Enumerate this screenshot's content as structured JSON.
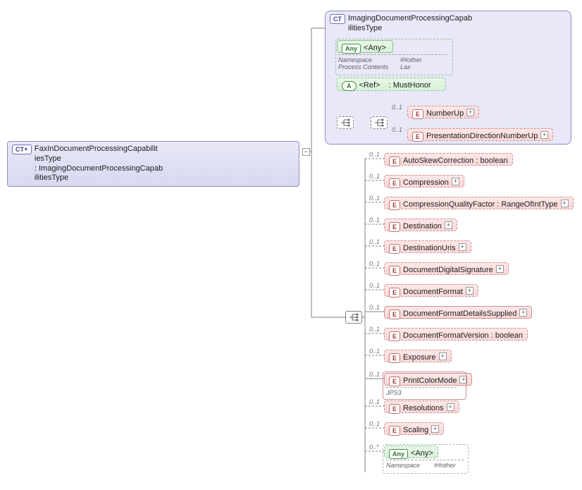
{
  "root": {
    "badge": "CT",
    "name": "FaxInDocumentProcessingCapabilit\niesType",
    "sep": " : ",
    "base": "ImagingDocumentProcessingCapab\nilitiesType"
  },
  "super": {
    "badge": "CT",
    "name": "ImagingDocumentProcessingCapab\nilitiesType"
  },
  "any1": {
    "badge": "Any",
    "name": "<Any>",
    "ns_k": "Namespace",
    "ns_v": "##other",
    "pc_k": "Process Contents",
    "pc_v": "Lax"
  },
  "ref": {
    "badge": "A",
    "name": "<Ref>",
    "sep": "    : ",
    "val": "MustHonor"
  },
  "e1": {
    "badge": "E",
    "name": "NumberUp",
    "card": "0..1"
  },
  "e2": {
    "badge": "E",
    "name": "PresentationDirectionNumberUp",
    "card": "0..1"
  },
  "list": [
    {
      "badge": "E",
      "name": "AutoSkewCorrection : boolean",
      "card": "0..1",
      "dashed": true,
      "plus": false
    },
    {
      "badge": "E",
      "name": "Compression",
      "card": "0..1",
      "dashed": true,
      "plus": true
    },
    {
      "badge": "E",
      "name": "CompressionQualityFactor : RangeOfIntType",
      "card": "0..1",
      "dashed": true,
      "plus": true
    },
    {
      "badge": "E",
      "name": "Destination",
      "card": "0..1",
      "dashed": true,
      "plus": true
    },
    {
      "badge": "E",
      "name": "DestinationUris",
      "card": "0..1",
      "dashed": true,
      "plus": true
    },
    {
      "badge": "E",
      "name": "DocumentDigitalSignature",
      "card": "0..1",
      "dashed": true,
      "plus": true
    },
    {
      "badge": "E",
      "name": "DocumentFormat",
      "card": "0..1",
      "dashed": true,
      "plus": true
    },
    {
      "badge": "E",
      "name": "DocumentFormatDetailsSupplied",
      "card": "0..1",
      "dashed": false,
      "plus": true
    },
    {
      "badge": "E",
      "name": "DocumentFormatVersion : boolean",
      "card": "0..1",
      "dashed": true,
      "plus": false
    },
    {
      "badge": "E",
      "name": "Exposure",
      "card": "0..1",
      "dashed": true,
      "plus": true
    },
    {
      "badge": "E",
      "name": "PrintColorMode",
      "card": "0..1",
      "dashed": false,
      "plus": true,
      "sub_k": "JPS3"
    },
    {
      "badge": "E",
      "name": "Resolutions",
      "card": "0..1",
      "dashed": true,
      "plus": true
    },
    {
      "badge": "E",
      "name": "Scaling",
      "card": "0..1",
      "dashed": true,
      "plus": true
    }
  ],
  "any2": {
    "badge": "Any",
    "name": "<Any>",
    "card": "0..*",
    "ns_k": "Namespace",
    "ns_v": "##other"
  }
}
